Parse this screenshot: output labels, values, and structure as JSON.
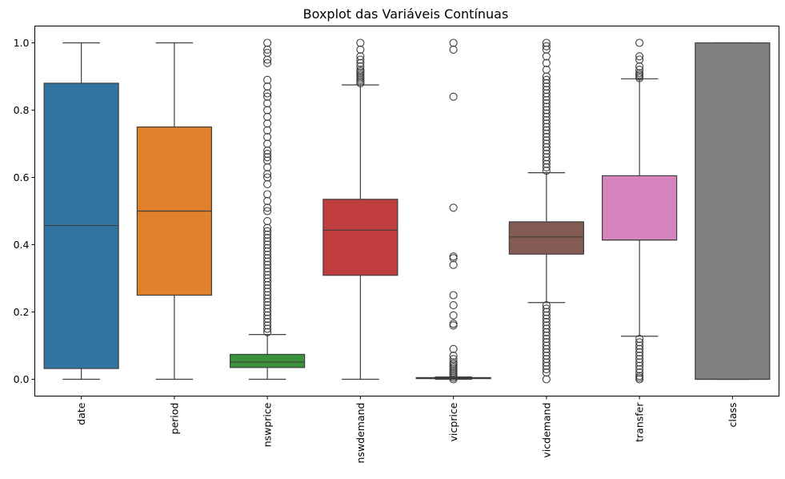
{
  "chart_data": {
    "type": "boxplot",
    "title": "Boxplot das Variáveis Contínuas",
    "xlabel": "",
    "ylabel": "",
    "ylim": [
      -0.05,
      1.05
    ],
    "yticks": [
      0.0,
      0.2,
      0.4,
      0.6,
      0.8,
      1.0
    ],
    "ytick_labels": [
      "0.0",
      "0.2",
      "0.4",
      "0.6",
      "0.8",
      "1.0"
    ],
    "grid": false,
    "series": [
      {
        "name": "date",
        "color": "#3274a1",
        "whisker_low": 0.0,
        "q1": 0.032,
        "median": 0.457,
        "q3": 0.88,
        "whisker_high": 1.0,
        "outliers": []
      },
      {
        "name": "period",
        "color": "#e1812c",
        "whisker_low": 0.0,
        "q1": 0.25,
        "median": 0.5,
        "q3": 0.75,
        "whisker_high": 1.0,
        "outliers": []
      },
      {
        "name": "nswprice",
        "color": "#3a923a",
        "whisker_low": 0.0,
        "q1": 0.035,
        "median": 0.051,
        "q3": 0.074,
        "whisker_high": 0.133,
        "outliers": [
          0.14,
          0.15,
          0.16,
          0.17,
          0.18,
          0.19,
          0.2,
          0.21,
          0.22,
          0.23,
          0.24,
          0.25,
          0.26,
          0.27,
          0.28,
          0.29,
          0.3,
          0.31,
          0.32,
          0.33,
          0.34,
          0.35,
          0.36,
          0.37,
          0.38,
          0.39,
          0.4,
          0.41,
          0.42,
          0.43,
          0.44,
          0.45,
          0.47,
          0.5,
          0.51,
          0.53,
          0.55,
          0.58,
          0.6,
          0.61,
          0.63,
          0.65,
          0.66,
          0.67,
          0.68,
          0.7,
          0.72,
          0.74,
          0.76,
          0.78,
          0.8,
          0.82,
          0.84,
          0.85,
          0.87,
          0.89,
          0.94,
          0.95,
          0.97,
          0.98,
          1.0
        ]
      },
      {
        "name": "nswdemand",
        "color": "#c03d3e",
        "whisker_low": 0.0,
        "q1": 0.309,
        "median": 0.443,
        "q3": 0.535,
        "whisker_high": 0.875,
        "outliers": [
          0.88,
          0.885,
          0.89,
          0.895,
          0.9,
          0.905,
          0.91,
          0.915,
          0.92,
          0.93,
          0.94,
          0.95,
          0.96,
          0.98,
          1.0
        ]
      },
      {
        "name": "vicprice",
        "color": "#9372b2",
        "whisker_low": 0.0,
        "q1": 0.002,
        "median": 0.003,
        "q3": 0.005,
        "whisker_high": 0.007,
        "outliers": [
          0.0,
          0.005,
          0.01,
          0.015,
          0.02,
          0.025,
          0.03,
          0.035,
          0.04,
          0.045,
          0.05,
          0.06,
          0.07,
          0.09,
          0.16,
          0.165,
          0.19,
          0.22,
          0.25,
          0.34,
          0.36,
          0.365,
          0.51,
          0.84,
          0.98,
          1.0
        ]
      },
      {
        "name": "vicdemand",
        "color": "#845b53",
        "whisker_low": 0.228,
        "q1": 0.372,
        "median": 0.423,
        "q3": 0.468,
        "whisker_high": 0.614,
        "outliers": [
          0.0,
          0.02,
          0.03,
          0.04,
          0.05,
          0.06,
          0.07,
          0.08,
          0.09,
          0.1,
          0.11,
          0.12,
          0.13,
          0.14,
          0.15,
          0.16,
          0.17,
          0.18,
          0.19,
          0.2,
          0.21,
          0.22,
          0.62,
          0.63,
          0.64,
          0.65,
          0.66,
          0.67,
          0.68,
          0.69,
          0.7,
          0.71,
          0.72,
          0.73,
          0.74,
          0.75,
          0.76,
          0.77,
          0.78,
          0.79,
          0.8,
          0.81,
          0.82,
          0.83,
          0.84,
          0.85,
          0.86,
          0.87,
          0.88,
          0.89,
          0.9,
          0.92,
          0.94,
          0.96,
          0.98,
          0.99,
          1.0
        ]
      },
      {
        "name": "transfer",
        "color": "#d684bd",
        "whisker_low": 0.128,
        "q1": 0.414,
        "median": 0.414,
        "q3": 0.605,
        "whisker_high": 0.893,
        "outliers": [
          0.0,
          0.005,
          0.01,
          0.02,
          0.03,
          0.04,
          0.05,
          0.06,
          0.07,
          0.08,
          0.09,
          0.1,
          0.11,
          0.12,
          0.895,
          0.9,
          0.905,
          0.91,
          0.92,
          0.93,
          0.95,
          0.96,
          1.0
        ]
      },
      {
        "name": "class",
        "color": "#7f7f7f",
        "whisker_low": 0.0,
        "q1": 0.0,
        "median": 0.0,
        "q3": 1.0,
        "whisker_high": 1.0,
        "outliers": []
      }
    ]
  }
}
